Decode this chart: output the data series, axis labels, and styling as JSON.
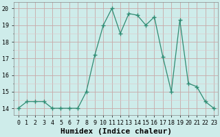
{
  "x": [
    0,
    1,
    2,
    3,
    4,
    5,
    6,
    7,
    8,
    9,
    10,
    11,
    12,
    13,
    14,
    15,
    16,
    17,
    18,
    19,
    20,
    21,
    22,
    23
  ],
  "y": [
    14.0,
    14.4,
    14.4,
    14.4,
    14.0,
    14.0,
    14.0,
    14.0,
    15.0,
    17.2,
    19.0,
    20.0,
    18.5,
    19.7,
    19.6,
    19.0,
    19.5,
    17.1,
    15.0,
    19.3,
    15.5,
    15.3,
    14.4,
    14.0
  ],
  "line_color": "#2e8b72",
  "marker": "+",
  "marker_size": 4,
  "bg_color": "#ceecea",
  "grid_major_color": "#c8a8a8",
  "grid_minor_color": "#ddc8c8",
  "xlabel": "Humidex (Indice chaleur)",
  "xlabel_fontsize": 8,
  "ylabel_ticks": [
    14,
    15,
    16,
    17,
    18,
    19,
    20
  ],
  "xlim": [
    -0.5,
    23.5
  ],
  "ylim": [
    13.6,
    20.4
  ],
  "tick_fontsize": 6
}
